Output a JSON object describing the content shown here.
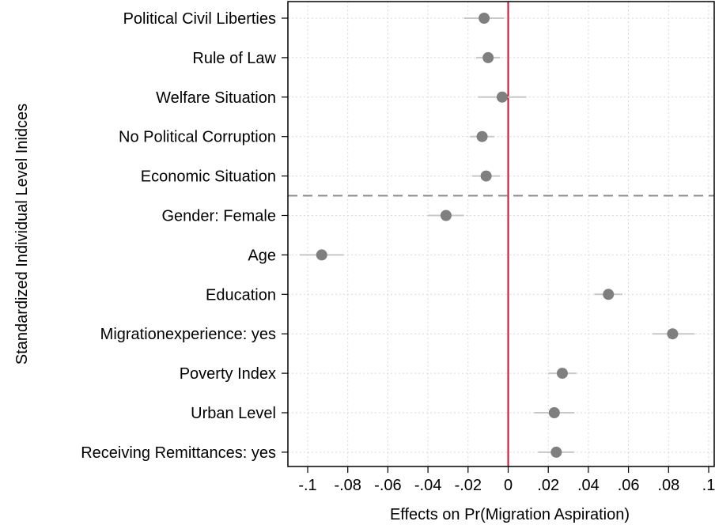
{
  "chart_data": {
    "type": "scatter",
    "subtype": "coefficient-plot",
    "title": "",
    "xlabel": "Effects on Pr(Migration Aspiration)",
    "ylabel": "Standardized Individual Level Inidces",
    "xlim": [
      -0.1,
      0.1
    ],
    "x_ticks": [
      -0.1,
      -0.08,
      -0.06,
      -0.04,
      -0.02,
      0,
      0.02,
      0.04,
      0.06,
      0.08,
      0.1
    ],
    "x_tick_labels": [
      "-.1",
      "-.08",
      "-.06",
      "-.04",
      "-.02",
      "0",
      ".02",
      ".04",
      ".06",
      ".08",
      ".1"
    ],
    "reference_line_x": 0,
    "separator_after_index": 4,
    "grid": true,
    "categories": [
      "Political Civil Liberties",
      "Rule of Law",
      "Welfare Situation",
      "No Political Corruption",
      "Economic Situation",
      "Gender: Female",
      "Age",
      "Education",
      "Migrationexperience: yes",
      "Poverty Index",
      "Urban Level",
      "Receiving Remittances: yes"
    ],
    "estimates": [
      -0.012,
      -0.01,
      -0.003,
      -0.013,
      -0.011,
      -0.031,
      -0.093,
      0.05,
      0.082,
      0.027,
      0.023,
      0.024
    ],
    "ci_low": [
      -0.022,
      -0.016,
      -0.015,
      -0.019,
      -0.018,
      -0.04,
      -0.104,
      0.043,
      0.072,
      0.02,
      0.013,
      0.015
    ],
    "ci_high": [
      -0.002,
      -0.004,
      0.009,
      -0.007,
      -0.004,
      -0.022,
      -0.082,
      0.057,
      0.093,
      0.034,
      0.033,
      0.033
    ],
    "colors": {
      "marker": "#7f7f7f",
      "ci": "#c8c8c8",
      "reference_line": "#c8102e",
      "separator": "#8c8c8c",
      "grid": "#d9d9d9"
    }
  }
}
